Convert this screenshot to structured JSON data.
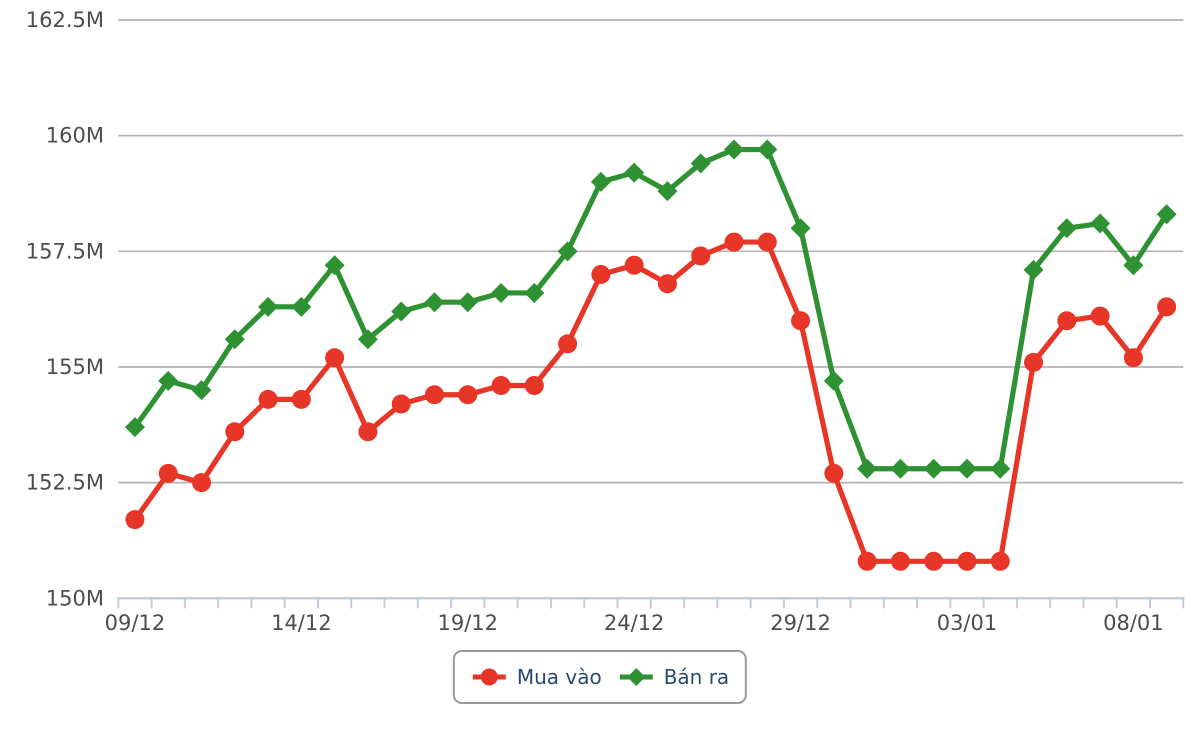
{
  "chart_data": {
    "type": "line",
    "categories": [
      "09/12",
      "10/12",
      "11/12",
      "12/12",
      "13/12",
      "14/12",
      "15/12",
      "16/12",
      "17/12",
      "18/12",
      "19/12",
      "20/12",
      "21/12",
      "22/12",
      "23/12",
      "24/12",
      "25/12",
      "26/12",
      "27/12",
      "28/12",
      "29/12",
      "30/12",
      "31/12",
      "01/01",
      "02/01",
      "03/01",
      "04/01",
      "05/01",
      "06/01",
      "07/01",
      "08/01",
      "09/01"
    ],
    "x_label_every": 5,
    "x_labels_shown": [
      "09/12",
      "14/12",
      "19/12",
      "24/12",
      "29/12",
      "03/01",
      "08/01"
    ],
    "series": [
      {
        "id": "mua-vao",
        "name": "Mua vào",
        "color": "#e73527",
        "marker": "circle",
        "values": [
          151.7,
          152.7,
          152.5,
          153.6,
          154.3,
          154.3,
          155.2,
          153.6,
          154.2,
          154.4,
          154.4,
          154.6,
          154.6,
          155.5,
          157.0,
          157.2,
          156.8,
          157.4,
          157.7,
          157.7,
          156.0,
          152.7,
          150.8,
          150.8,
          150.8,
          150.8,
          150.8,
          155.1,
          156.0,
          156.1,
          155.2,
          156.3
        ]
      },
      {
        "id": "ban-ra",
        "name": "Bán ra",
        "color": "#2e9132",
        "marker": "diamond",
        "values": [
          153.7,
          154.7,
          154.5,
          155.6,
          156.3,
          156.3,
          157.2,
          155.6,
          156.2,
          156.4,
          156.4,
          156.6,
          156.6,
          157.5,
          159.0,
          159.2,
          158.8,
          159.4,
          159.7,
          159.7,
          158.0,
          154.7,
          152.8,
          152.8,
          152.8,
          152.8,
          152.8,
          157.1,
          158.0,
          158.1,
          157.2,
          158.3
        ]
      }
    ],
    "ylim": [
      150,
      162.5
    ],
    "y_ticks": [
      150,
      152.5,
      155,
      157.5,
      160,
      162.5
    ],
    "y_tick_labels": [
      "150M",
      "152.5M",
      "155M",
      "157.5M",
      "160M",
      "162.5M"
    ],
    "grid": true,
    "legend_position": "bottom",
    "colors": {
      "grid": "#b3b3b3",
      "axis": "#c3ced9",
      "tick_text": "#4d4d4d",
      "legend_text": "#274b6d",
      "legend_border": "#999999"
    },
    "title": "",
    "xlabel": "",
    "ylabel": ""
  }
}
